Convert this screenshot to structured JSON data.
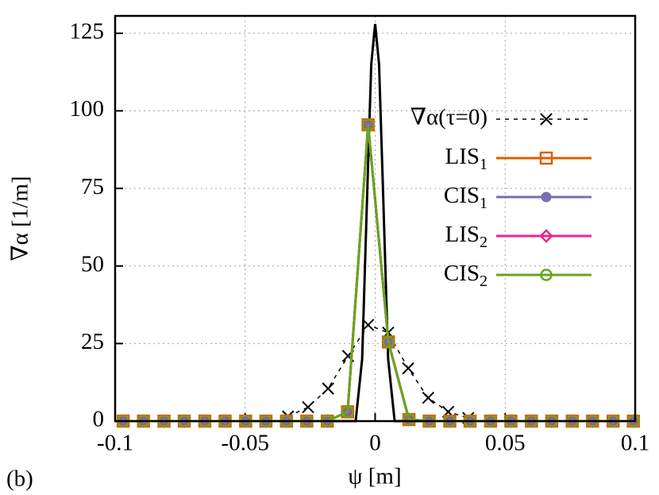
{
  "chart_data": {
    "type": "line",
    "xlabel": "ψ [m]",
    "ylabel": "∇α [1/m]",
    "annotation": "(b)",
    "xlim": [
      -0.1,
      0.1
    ],
    "ylim": [
      0,
      130.6
    ],
    "xticks": [
      -0.1,
      -0.05,
      0,
      0.05,
      0.1
    ],
    "yticks": [
      0,
      25,
      50,
      75,
      100,
      125
    ],
    "grid": true,
    "legend": "right",
    "series": [
      {
        "color": "#000000",
        "marker": "none",
        "dash": false,
        "x": [
          -0.1,
          -0.0075,
          -0.005,
          -0.003,
          -0.0015,
          0,
          0.0015,
          0.003,
          0.005,
          0.0075,
          0.1
        ],
        "values": [
          0,
          0,
          20,
          75,
          115,
          128,
          115,
          75,
          20,
          0,
          0
        ]
      },
      {
        "name": "∇α(τ=0)",
        "color": "#000000",
        "marker": "cross",
        "dash": true,
        "x": [
          -0.0335,
          -0.0258,
          -0.0181,
          -0.0104,
          -0.0027,
          0.005,
          0.0127,
          0.0204,
          0.0281,
          0.0358
        ],
        "values": [
          1.5,
          4.5,
          10.5,
          21,
          31,
          28.5,
          17,
          7.5,
          3,
          1
        ]
      },
      {
        "name": "LIS1",
        "color": "#d95f02",
        "marker": "square",
        "dash": false,
        "x": [
          -0.0969,
          -0.0891,
          -0.0812,
          -0.0734,
          -0.0655,
          -0.0577,
          -0.0498,
          -0.042,
          -0.0341,
          -0.0263,
          -0.0184,
          -0.0106,
          -0.0027,
          0.0051,
          0.013,
          0.0208,
          0.0287,
          0.0365,
          0.0444,
          0.0522,
          0.0601,
          0.0679,
          0.0758,
          0.0836,
          0.0915,
          0.0993
        ],
        "values": [
          0,
          0,
          0,
          0,
          0,
          0,
          0,
          0,
          0,
          0,
          0,
          3,
          95.5,
          25.5,
          0.5,
          0,
          0,
          0,
          0,
          0,
          0,
          0,
          0,
          0,
          0,
          0
        ]
      },
      {
        "name": "CIS1",
        "color": "#7570b3",
        "marker": "dot",
        "dash": false,
        "x": [
          -0.0969,
          -0.0891,
          -0.0812,
          -0.0734,
          -0.0655,
          -0.0577,
          -0.0498,
          -0.042,
          -0.0341,
          -0.0263,
          -0.0184,
          -0.0106,
          -0.0027,
          0.0051,
          0.013,
          0.0208,
          0.0287,
          0.0365,
          0.0444,
          0.0522,
          0.0601,
          0.0679,
          0.0758,
          0.0836,
          0.0915,
          0.0993
        ],
        "values": [
          0,
          0,
          0,
          0,
          0,
          0,
          0,
          0,
          0,
          0,
          0,
          3,
          95.5,
          25.5,
          0.5,
          0,
          0,
          0,
          0,
          0,
          0,
          0,
          0,
          0,
          0,
          0
        ]
      },
      {
        "name": "LIS2",
        "color": "#e7298a",
        "marker": "diamond",
        "dash": false,
        "x": [
          -0.0969,
          -0.0891,
          -0.0812,
          -0.0734,
          -0.0655,
          -0.0577,
          -0.0498,
          -0.042,
          -0.0341,
          -0.0263,
          -0.0184,
          -0.0106,
          -0.0027,
          0.0051,
          0.013,
          0.0208,
          0.0287,
          0.0365,
          0.0444,
          0.0522,
          0.0601,
          0.0679,
          0.0758,
          0.0836,
          0.0915,
          0.0993
        ],
        "values": [
          0,
          0,
          0,
          0,
          0,
          0,
          0,
          0,
          0,
          0,
          0,
          3,
          95.5,
          25.5,
          0.5,
          0,
          0,
          0,
          0,
          0,
          0,
          0,
          0,
          0,
          0,
          0
        ]
      },
      {
        "name": "CIS2",
        "color": "#66a61e",
        "marker": "circle",
        "dash": false,
        "x": [
          -0.0969,
          -0.0891,
          -0.0812,
          -0.0734,
          -0.0655,
          -0.0577,
          -0.0498,
          -0.042,
          -0.0341,
          -0.0263,
          -0.0184,
          -0.0106,
          -0.0027,
          0.0051,
          0.013,
          0.0208,
          0.0287,
          0.0365,
          0.0444,
          0.0522,
          0.0601,
          0.0679,
          0.0758,
          0.0836,
          0.0915,
          0.0993
        ],
        "values": [
          0,
          0,
          0,
          0,
          0,
          0,
          0,
          0,
          0,
          0,
          0,
          3,
          95.5,
          25.5,
          0.5,
          0,
          0,
          0,
          0,
          0,
          0,
          0,
          0,
          0,
          0,
          0
        ]
      }
    ]
  }
}
